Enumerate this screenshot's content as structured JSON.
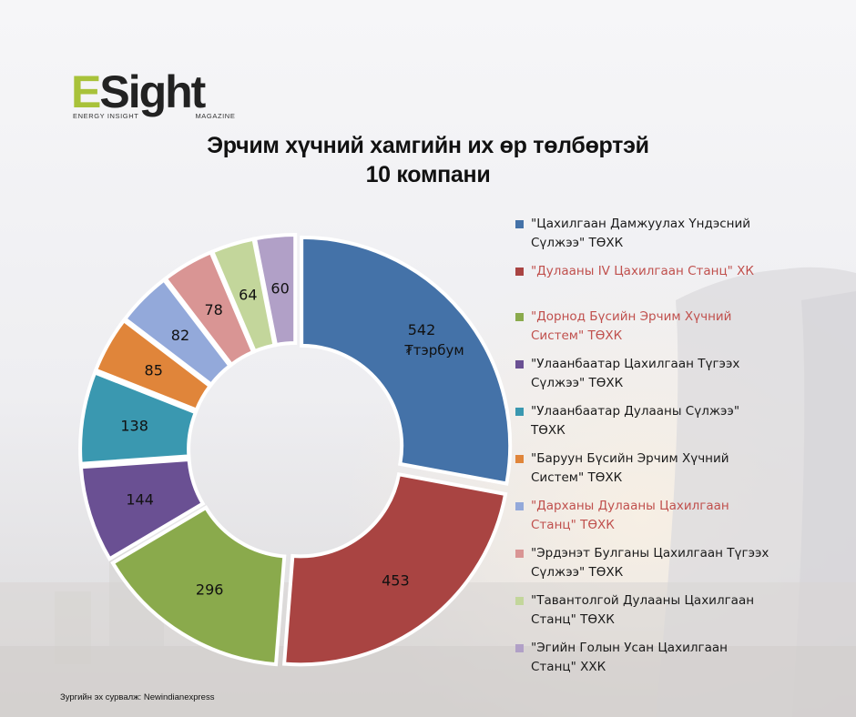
{
  "brand": {
    "logo_text_accent": "E",
    "logo_text_rest": "Sight",
    "logo_sub_left": "ENERGY INSIGHT",
    "logo_sub_right": "MAGAZINE",
    "accent_color": "#a8c23a"
  },
  "title": {
    "line1": "Эрчим хүчний хамгийн их өр төлбөртэй",
    "line2": "10 компани"
  },
  "source": "Зургийн эх сурвалж: Newindianexpress",
  "chart_data": {
    "type": "pie",
    "variant": "donut",
    "title": "Эрчим хүчний хамгийн их өр төлбөртэй 10 компани",
    "unit_label": "₮тэрбум",
    "legend_position": "right",
    "categories": [
      "\"Цахилгаан Дамжуулах Үндэсний Сүлжээ\" ТӨХК",
      "\"Дулааны IV Цахилгаан Станц\" ХК",
      "\"Дорнод Бүсийн Эрчим Хүчний Систем\" ТӨХК",
      "\"Улаанбаатар Цахилгаан Түгээх Сүлжээ\" ТӨХК",
      "\"Улаанбаатар Дулааны Сүлжээ\" ТӨХК",
      "\"Баруун Бүсийн Эрчим Хүчний Систем\" ТӨХК",
      "\"Дарханы Дулааны Цахилгаан Станц\" ТӨХК",
      "\"Эрдэнэт Булганы Цахилгаан Түгээх Сүлжээ\" ТӨХК",
      "\"Тавантолгой Дулааны Цахилгаан Станц\" ТӨХК",
      "\"Эгийн Голын Усан Цахилгаан Станц\" ХХК"
    ],
    "values": [
      542,
      453,
      296,
      144,
      138,
      85,
      82,
      78,
      64,
      60
    ],
    "colors": [
      "#4472a8",
      "#a94442",
      "#8aaa4c",
      "#6a5093",
      "#3a98b0",
      "#e0853a",
      "#93a9da",
      "#d99594",
      "#c3d69b",
      "#b1a0c7"
    ],
    "legend_text_colors": [
      "#1a1a1a",
      "#c0504d",
      "#c0504d",
      "#1a1a1a",
      "#1a1a1a",
      "#1a1a1a",
      "#c0504d",
      "#1a1a1a",
      "#1a1a1a",
      "#1a1a1a"
    ],
    "label_colors": [
      "#111111",
      "#111111",
      "#111111",
      "#111111",
      "#111111",
      "#111111",
      "#111111",
      "#111111",
      "#111111",
      "#111111"
    ]
  }
}
